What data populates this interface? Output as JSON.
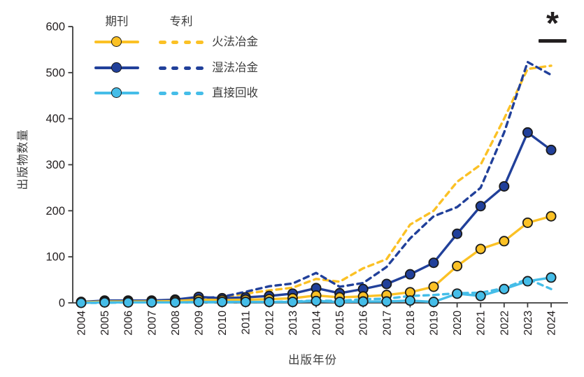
{
  "figure": {
    "annotation": {
      "symbol": "*"
    },
    "axes": {
      "y_label": "出版物数量",
      "x_label": "出版年份",
      "y_ticks": [
        0,
        100,
        200,
        300,
        400,
        500,
        600
      ],
      "x_ticks": [
        "2004",
        "2005",
        "2006",
        "2007",
        "2008",
        "2009",
        "2010",
        "2011",
        "2012",
        "2013",
        "2014",
        "2015",
        "2016",
        "2017",
        "2018",
        "2019",
        "2020",
        "2021",
        "2022",
        "2023",
        "2024"
      ]
    },
    "legend": {
      "col_journal": "期刊",
      "col_patent": "专利",
      "rows": [
        {
          "key": "pyro",
          "label": "火法冶金",
          "color": "#FBC125"
        },
        {
          "key": "hydro",
          "label": "湿法冶金",
          "color": "#21409A"
        },
        {
          "key": "direct",
          "label": "直接回收",
          "color": "#45BDE8"
        }
      ]
    },
    "colors": {
      "axis": "#3b3b3b",
      "tick_text": "#231f20",
      "marker_outline": "#1a1a1a",
      "annotation": "#231f20"
    }
  },
  "chart_data": {
    "type": "line",
    "title": "",
    "xlabel": "出版年份",
    "ylabel": "出版物数量",
    "x": [
      2004,
      2005,
      2006,
      2007,
      2008,
      2009,
      2010,
      2011,
      2012,
      2013,
      2014,
      2015,
      2016,
      2017,
      2018,
      2019,
      2020,
      2021,
      2022,
      2023,
      2024
    ],
    "ylim": [
      0,
      600
    ],
    "grid": false,
    "legend_position": "top-left",
    "annotation_top_right": "*",
    "series": [
      {
        "key": "pyro-patent",
        "name": "火法冶金 专利",
        "group": "专利",
        "style": "dashed",
        "color": "#FBC125",
        "values": [
          0,
          2,
          3,
          4,
          5,
          8,
          12,
          20,
          27,
          33,
          52,
          46,
          75,
          95,
          170,
          200,
          263,
          300,
          400,
          508,
          515
        ]
      },
      {
        "key": "hydro-patent",
        "name": "湿法冶金 专利",
        "group": "专利",
        "style": "dashed",
        "color": "#21409A",
        "values": [
          1,
          3,
          4,
          5,
          6,
          10,
          13,
          24,
          36,
          42,
          65,
          35,
          43,
          78,
          140,
          188,
          208,
          250,
          370,
          523,
          495
        ]
      },
      {
        "key": "direct-patent",
        "name": "直接回收 专利",
        "group": "专利",
        "style": "dashed",
        "color": "#45BDE8",
        "values": [
          0,
          0,
          1,
          1,
          1,
          1,
          1,
          2,
          2,
          3,
          5,
          4,
          8,
          9,
          15,
          17,
          21,
          22,
          32,
          52,
          30
        ]
      },
      {
        "key": "hydro-journal",
        "name": "湿法冶金 期刊",
        "group": "期刊",
        "style": "solid-marker",
        "color": "#21409A",
        "values": [
          2,
          5,
          5,
          5,
          7,
          13,
          10,
          12,
          15,
          20,
          32,
          21,
          30,
          41,
          62,
          87,
          150,
          210,
          253,
          370,
          332
        ]
      },
      {
        "key": "pyro-journal",
        "name": "火法冶金 期刊",
        "group": "期刊",
        "style": "solid-marker",
        "color": "#FBC125",
        "values": [
          1,
          3,
          3,
          3,
          4,
          7,
          6,
          7,
          8,
          10,
          16,
          12,
          14,
          17,
          23,
          35,
          80,
          117,
          134,
          174,
          188
        ]
      },
      {
        "key": "direct-journal",
        "name": "直接回收 期刊",
        "group": "期刊",
        "style": "solid-marker",
        "color": "#45BDE8",
        "values": [
          0,
          1,
          1,
          1,
          1,
          2,
          2,
          2,
          2,
          2,
          4,
          2,
          3,
          3,
          5,
          2,
          20,
          15,
          30,
          47,
          55
        ]
      }
    ]
  }
}
